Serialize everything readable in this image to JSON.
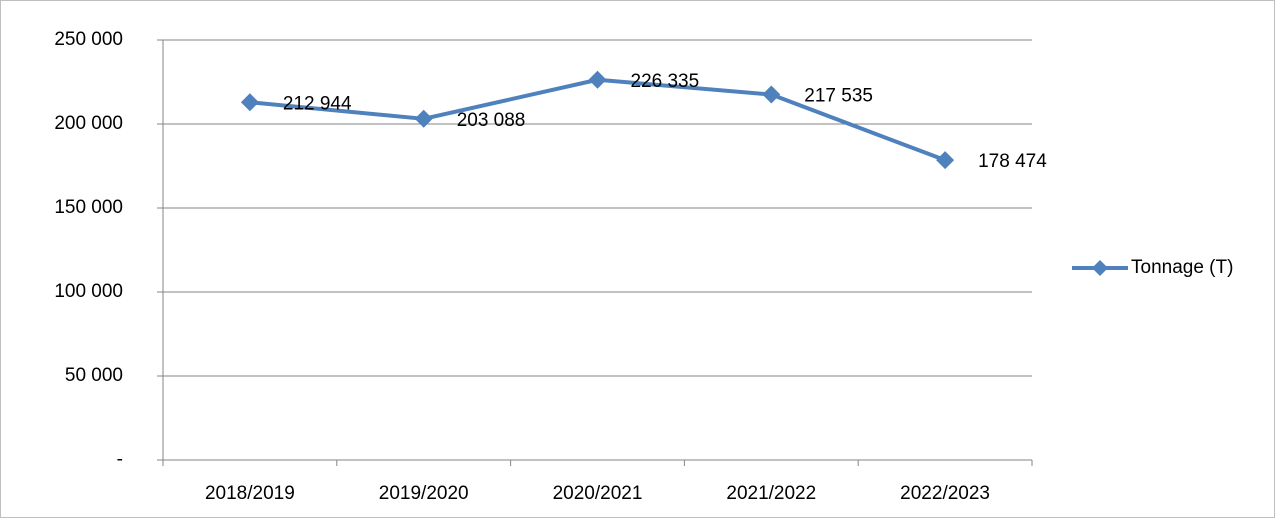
{
  "chart_data": {
    "type": "line",
    "categories": [
      "2018/2019",
      "2019/2020",
      "2020/2021",
      "2021/2022",
      "2022/2023"
    ],
    "series": [
      {
        "name": "Tonnage (T)",
        "color": "#4f81bd",
        "values": [
          212944,
          203088,
          226335,
          217535,
          178474
        ],
        "value_labels": [
          "212 944",
          "203 088",
          "226 335",
          "217 535",
          "178 474"
        ]
      }
    ],
    "ylim": [
      0,
      250000
    ],
    "yticks": [
      {
        "value": 0,
        "label": "-"
      },
      {
        "value": 50000,
        "label": "50 000"
      },
      {
        "value": 100000,
        "label": "100 000"
      },
      {
        "value": 150000,
        "label": "150 000"
      },
      {
        "value": 200000,
        "label": "200 000"
      },
      {
        "value": 250000,
        "label": "250 000"
      }
    ],
    "grid": true,
    "legend": "right"
  }
}
